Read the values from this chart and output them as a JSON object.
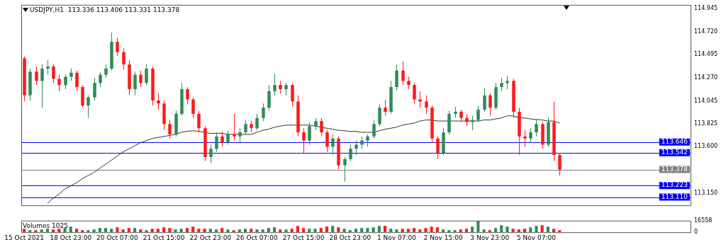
{
  "chart_data": [
    {
      "type": "candlestick",
      "title": "USDJPY,H1  113.336 113.406 113.331 113.378",
      "categories": [
        null,
        null,
        null,
        null,
        null,
        null,
        null,
        null,
        null,
        null,
        null,
        null,
        null,
        null,
        null,
        null,
        null,
        null,
        null,
        null,
        null,
        null,
        null,
        null,
        null,
        null,
        null,
        null,
        null,
        null,
        null,
        null,
        null,
        null,
        null,
        null,
        null,
        null,
        null,
        null,
        null,
        null,
        null,
        null,
        null,
        null,
        null,
        null,
        null,
        null,
        null,
        null,
        null,
        null,
        null,
        null,
        null,
        null,
        null,
        null,
        null,
        null,
        null,
        null,
        null,
        null,
        null,
        null,
        null,
        null,
        null,
        null,
        null,
        null,
        null,
        null,
        null,
        null,
        null,
        null,
        null,
        null,
        null,
        null,
        null,
        null,
        null,
        null,
        null,
        null,
        null,
        null,
        null,
        null,
        null,
        null,
        null,
        null,
        null,
        null,
        null,
        null,
        null,
        null,
        null,
        null,
        null,
        null,
        null,
        null,
        null,
        null,
        null,
        null,
        null
      ],
      "ohlc": [
        [
          114.46,
          114.48,
          114.04,
          114.1
        ],
        [
          114.1,
          114.36,
          114.05,
          114.33
        ],
        [
          114.33,
          114.38,
          114.2,
          114.24
        ],
        [
          114.24,
          114.4,
          113.98,
          114.36
        ],
        [
          114.36,
          114.44,
          114.3,
          114.38
        ],
        [
          114.38,
          114.4,
          114.22,
          114.26
        ],
        [
          114.26,
          114.3,
          114.14,
          114.2
        ],
        [
          114.2,
          114.3,
          114.16,
          114.28
        ],
        [
          114.28,
          114.36,
          114.24,
          114.32
        ],
        [
          114.32,
          114.34,
          114.14,
          114.18
        ],
        [
          114.18,
          114.2,
          113.98,
          114.0
        ],
        [
          114.0,
          114.1,
          113.88,
          114.08
        ],
        [
          114.08,
          114.27,
          114.05,
          114.22
        ],
        [
          114.22,
          114.32,
          114.18,
          114.3
        ],
        [
          114.3,
          114.4,
          114.27,
          114.36
        ],
        [
          114.36,
          114.71,
          114.34,
          114.62
        ],
        [
          114.62,
          114.66,
          114.48,
          114.52
        ],
        [
          114.52,
          114.56,
          114.35,
          114.4
        ],
        [
          114.4,
          114.44,
          114.1,
          114.16
        ],
        [
          114.16,
          114.33,
          114.1,
          114.3
        ],
        [
          114.3,
          114.34,
          114.18,
          114.22
        ],
        [
          114.22,
          114.4,
          114.2,
          114.36
        ],
        [
          114.36,
          114.38,
          114.0,
          114.05
        ],
        [
          114.05,
          114.12,
          113.96,
          114.02
        ],
        [
          114.02,
          114.05,
          113.76,
          113.82
        ],
        [
          113.82,
          113.86,
          113.68,
          113.72
        ],
        [
          113.72,
          113.95,
          113.7,
          113.92
        ],
        [
          113.92,
          114.22,
          113.9,
          114.16
        ],
        [
          114.16,
          114.18,
          114.01,
          114.06
        ],
        [
          114.06,
          114.08,
          113.88,
          113.92
        ],
        [
          113.92,
          113.95,
          113.74,
          113.78
        ],
        [
          113.78,
          113.8,
          113.46,
          113.5
        ],
        [
          113.5,
          113.62,
          113.44,
          113.58
        ],
        [
          113.58,
          113.74,
          113.55,
          113.7
        ],
        [
          113.7,
          113.75,
          113.6,
          113.64
        ],
        [
          113.64,
          113.76,
          113.62,
          113.72
        ],
        [
          113.72,
          113.92,
          113.66,
          113.7
        ],
        [
          113.7,
          113.78,
          113.64,
          113.74
        ],
        [
          113.74,
          113.86,
          113.72,
          113.82
        ],
        [
          113.82,
          113.85,
          113.74,
          113.78
        ],
        [
          113.78,
          113.92,
          113.76,
          113.88
        ],
        [
          113.88,
          114.02,
          113.85,
          113.98
        ],
        [
          113.98,
          114.2,
          113.95,
          114.14
        ],
        [
          114.14,
          114.31,
          114.1,
          114.2
        ],
        [
          114.2,
          114.24,
          114.12,
          114.16
        ],
        [
          114.16,
          114.22,
          114.1,
          114.2
        ],
        [
          114.2,
          114.22,
          113.99,
          114.04
        ],
        [
          114.04,
          114.1,
          113.7,
          113.74
        ],
        [
          113.74,
          113.78,
          113.54,
          113.66
        ],
        [
          113.66,
          113.84,
          113.62,
          113.8
        ],
        [
          113.8,
          113.88,
          113.76,
          113.85
        ],
        [
          113.85,
          113.88,
          113.7,
          113.74
        ],
        [
          113.74,
          113.76,
          113.55,
          113.6
        ],
        [
          113.6,
          113.72,
          113.52,
          113.68
        ],
        [
          113.68,
          113.7,
          113.38,
          113.42
        ],
        [
          113.42,
          113.5,
          113.26,
          113.48
        ],
        [
          113.48,
          113.62,
          113.46,
          113.58
        ],
        [
          113.58,
          113.66,
          113.52,
          113.62
        ],
        [
          113.62,
          113.7,
          113.58,
          113.66
        ],
        [
          113.66,
          113.72,
          113.6,
          113.7
        ],
        [
          113.7,
          113.86,
          113.68,
          113.82
        ],
        [
          113.82,
          114.01,
          113.8,
          113.98
        ],
        [
          113.98,
          114.06,
          113.9,
          113.94
        ],
        [
          113.94,
          114.24,
          113.92,
          114.18
        ],
        [
          114.18,
          114.4,
          114.15,
          114.34
        ],
        [
          114.34,
          114.43,
          114.2,
          114.24
        ],
        [
          114.24,
          114.28,
          114.16,
          114.2
        ],
        [
          114.2,
          114.22,
          114.02,
          114.06
        ],
        [
          114.06,
          114.14,
          113.98,
          114.04
        ],
        [
          114.04,
          114.1,
          113.92,
          113.98
        ],
        [
          113.98,
          114.0,
          113.64,
          113.68
        ],
        [
          113.68,
          113.7,
          113.48,
          113.54
        ],
        [
          113.54,
          113.78,
          113.52,
          113.74
        ],
        [
          113.74,
          113.95,
          113.72,
          113.92
        ],
        [
          113.92,
          113.99,
          113.88,
          113.94
        ],
        [
          113.94,
          113.96,
          113.84,
          113.88
        ],
        [
          113.88,
          113.92,
          113.8,
          113.84
        ],
        [
          113.84,
          113.9,
          113.76,
          113.86
        ],
        [
          113.86,
          114.0,
          113.84,
          113.96
        ],
        [
          113.96,
          114.17,
          113.94,
          114.1
        ],
        [
          114.1,
          114.12,
          113.9,
          113.98
        ],
        [
          113.98,
          114.22,
          113.96,
          114.18
        ],
        [
          114.18,
          114.27,
          114.14,
          114.22
        ],
        [
          114.22,
          114.29,
          114.16,
          114.24
        ],
        [
          114.24,
          114.26,
          113.88,
          113.94
        ],
        [
          113.94,
          113.98,
          113.52,
          113.7
        ],
        [
          113.7,
          113.76,
          113.6,
          113.68
        ],
        [
          113.68,
          113.78,
          113.64,
          113.74
        ],
        [
          113.74,
          113.86,
          113.7,
          113.82
        ],
        [
          113.82,
          113.84,
          113.58,
          113.62
        ],
        [
          113.62,
          113.88,
          113.6,
          113.84
        ],
        [
          113.84,
          114.04,
          113.46,
          113.52
        ],
        [
          113.52,
          113.54,
          113.32,
          113.378
        ],
        null,
        null,
        null,
        null,
        null,
        null,
        null,
        null,
        null,
        null,
        null,
        null,
        null,
        null,
        null,
        null,
        null,
        null,
        null,
        null,
        null,
        null
      ],
      "colors": [
        "#ff1a1a",
        "#2e8b57",
        "#ff1a1a",
        "#2e8b57",
        "#2e8b57",
        "#ff1a1a",
        "#ff1a1a",
        "#2e8b57",
        "#2e8b57",
        "#ff1a1a",
        "#ff1a1a",
        "#2e8b57",
        "#2e8b57",
        "#2e8b57",
        "#2e8b57",
        "#2e8b57",
        "#ff1a1a",
        "#ff1a1a",
        "#ff1a1a",
        "#2e8b57",
        "#ff1a1a",
        "#2e8b57",
        "#ff1a1a",
        "#ff1a1a",
        "#ff1a1a",
        "#ff1a1a",
        "#2e8b57",
        "#2e8b57",
        "#ff1a1a",
        "#ff1a1a",
        "#ff1a1a",
        "#ff1a1a",
        "#2e8b57",
        "#2e8b57",
        "#ff1a1a",
        "#2e8b57",
        "#ff1a1a",
        "#2e8b57",
        "#2e8b57",
        "#ff1a1a",
        "#2e8b57",
        "#2e8b57",
        "#2e8b57",
        "#2e8b57",
        "#ff1a1a",
        "#2e8b57",
        "#ff1a1a",
        "#ff1a1a",
        "#ff1a1a",
        "#2e8b57",
        "#2e8b57",
        "#ff1a1a",
        "#ff1a1a",
        "#2e8b57",
        "#ff1a1a",
        "#2e8b57",
        "#2e8b57",
        "#2e8b57",
        "#2e8b57",
        "#2e8b57",
        "#2e8b57",
        "#2e8b57",
        "#ff1a1a",
        "#2e8b57",
        "#2e8b57",
        "#ff1a1a",
        "#ff1a1a",
        "#ff1a1a",
        "#ff1a1a",
        "#ff1a1a",
        "#ff1a1a",
        "#ff1a1a",
        "#2e8b57",
        "#2e8b57",
        "#2e8b57",
        "#ff1a1a",
        "#ff1a1a",
        "#2e8b57",
        "#2e8b57",
        "#2e8b57",
        "#ff1a1a",
        "#2e8b57",
        "#2e8b57",
        "#2e8b57",
        "#ff1a1a",
        "#ff1a1a",
        "#ff1a1a",
        "#2e8b57",
        "#2e8b57",
        "#ff1a1a",
        "#2e8b57",
        "#ff1a1a",
        "#ff1a1a",
        null,
        null,
        null,
        null,
        null,
        null,
        null,
        null,
        null,
        null,
        null,
        null,
        null,
        null,
        null,
        null,
        null,
        null,
        null,
        null,
        null,
        null
      ],
      "series": [
        {
          "type": "line",
          "color": "#333333",
          "values": [
            null,
            null,
            null,
            null,
            113.05,
            113.1,
            113.14,
            113.19,
            113.22,
            113.25,
            113.29,
            113.32,
            113.35,
            113.39,
            113.43,
            113.47,
            113.51,
            113.55,
            113.58,
            113.61,
            113.64,
            113.66,
            113.68,
            113.69,
            113.7,
            113.71,
            113.72,
            113.74,
            113.75,
            113.755,
            113.75,
            113.74,
            113.73,
            113.73,
            113.73,
            113.72,
            113.72,
            113.72,
            113.72,
            113.72,
            113.74,
            113.76,
            113.77,
            113.79,
            113.8,
            113.81,
            113.81,
            113.81,
            113.81,
            113.81,
            113.8,
            113.79,
            113.78,
            113.77,
            113.76,
            113.755,
            113.75,
            113.75,
            113.74,
            113.74,
            113.74,
            113.755,
            113.77,
            113.78,
            113.79,
            113.81,
            113.82,
            113.83,
            113.85,
            113.86,
            113.86,
            113.85,
            113.85,
            113.85,
            113.85,
            113.85,
            113.85,
            113.85,
            113.85,
            113.86,
            113.86,
            113.87,
            113.88,
            113.9,
            113.9,
            113.88,
            113.88,
            113.87,
            113.865,
            113.86,
            113.85,
            113.85,
            113.83,
            null,
            null,
            null,
            null,
            null,
            null,
            null,
            null,
            null,
            null,
            null,
            null,
            null,
            null,
            null,
            null,
            null,
            null,
            null,
            null,
            null,
            null
          ]
        }
      ],
      "ylim": [
        113.03,
        114.98
      ],
      "yticks": [
        114.945,
        {
          "value": 114.72,
          "label": "114.720"
        },
        114.495,
        {
          "value": 114.27,
          "label": "114.270"
        },
        114.045,
        113.825,
        {
          "value": 113.6,
          "label": "113.600"
        },
        {
          "value": 113.15,
          "label": "113.150"
        }
      ],
      "ref_lines": [
        {
          "axis": "y",
          "value": 113.646,
          "label": "113.646",
          "color": "#0000ff"
        },
        {
          "axis": "y",
          "value": 113.542,
          "label": "113.542",
          "color": "#0000ff"
        },
        {
          "axis": "y",
          "value": 113.378,
          "label": "113.378",
          "color": "#808080"
        },
        {
          "axis": "y",
          "value": 113.223,
          "label": "113.223",
          "color": "#0000ff"
        },
        {
          "axis": "y",
          "value": 113.11,
          "label": "113.110",
          "color": "#0000ff"
        }
      ]
    },
    {
      "type": "bar",
      "title": "Volumes 1025",
      "categories": [
        "15 Oct 2021",
        null,
        null,
        null,
        null,
        null,
        null,
        null,
        "18 Oct 23:00",
        null,
        null,
        null,
        null,
        null,
        null,
        null,
        "20 Oct 07:00",
        null,
        null,
        null,
        null,
        null,
        null,
        null,
        "21 Oct 15:00",
        null,
        null,
        null,
        null,
        null,
        null,
        null,
        "22 Oct 23:00",
        null,
        null,
        null,
        null,
        null,
        null,
        null,
        "26 Oct 07:00",
        null,
        null,
        null,
        null,
        null,
        null,
        null,
        "27 Oct 15:00",
        null,
        null,
        null,
        null,
        null,
        null,
        null,
        "28 Oct 23:00",
        null,
        null,
        null,
        null,
        null,
        null,
        null,
        "1 Nov 07:00",
        null,
        null,
        null,
        null,
        null,
        null,
        null,
        "2 Nov 15:00",
        null,
        null,
        null,
        null,
        null,
        null,
        null,
        "3 Nov 23:00",
        null,
        null,
        null,
        null,
        null,
        null,
        null,
        "5 Nov 07:00",
        null,
        null,
        null,
        null,
        null,
        null,
        null,
        null,
        null,
        null,
        null,
        null,
        null,
        null,
        null,
        null,
        null,
        null,
        null,
        null,
        null,
        null,
        null,
        null,
        null,
        null
      ],
      "values": [
        5000,
        3000,
        3000,
        4000,
        5000,
        4000,
        5000,
        6000,
        8000,
        5000,
        3000,
        3000,
        4000,
        6000,
        6000,
        5000,
        7000,
        4000,
        6000,
        6000,
        4000,
        3000,
        5000,
        5000,
        7000,
        6000,
        4000,
        5000,
        6000,
        8000,
        5000,
        5000,
        5000,
        4000,
        6000,
        4000,
        3000,
        4000,
        5000,
        5000,
        4000,
        4000,
        6000,
        7000,
        4000,
        4000,
        5000,
        9000,
        6000,
        5000,
        5000,
        6000,
        8000,
        9000,
        7000,
        5000,
        3000,
        5000,
        6000,
        6000,
        7000,
        9000,
        9000,
        5000,
        4000,
        5000,
        5000,
        6000,
        4000,
        6000,
        8000,
        7000,
        4000,
        3000,
        3000,
        4000,
        5000,
        8000,
        16000,
        4000,
        3000,
        6000,
        10000,
        8000,
        5000,
        4000,
        5000,
        7000,
        9000,
        10000,
        8000,
        5000,
        3000,
        null,
        null,
        null,
        null,
        null,
        null,
        null,
        null,
        null,
        null,
        null,
        null,
        null,
        null,
        null,
        null,
        null,
        null,
        null,
        null,
        null,
        null
      ],
      "colors": [
        "#ff1a1a",
        "#2e8b57",
        "#ff1a1a",
        "#2e8b57",
        "#2e8b57",
        "#ff1a1a",
        "#ff1a1a",
        "#2e8b57",
        "#2e8b57",
        "#ff1a1a",
        "#ff1a1a",
        "#2e8b57",
        "#2e8b57",
        "#2e8b57",
        "#2e8b57",
        "#2e8b57",
        "#ff1a1a",
        "#ff1a1a",
        "#ff1a1a",
        "#2e8b57",
        "#ff1a1a",
        "#2e8b57",
        "#ff1a1a",
        "#ff1a1a",
        "#ff1a1a",
        "#ff1a1a",
        "#2e8b57",
        "#2e8b57",
        "#ff1a1a",
        "#ff1a1a",
        "#ff1a1a",
        "#ff1a1a",
        "#2e8b57",
        "#2e8b57",
        "#ff1a1a",
        "#2e8b57",
        "#ff1a1a",
        "#2e8b57",
        "#2e8b57",
        "#ff1a1a",
        "#2e8b57",
        "#2e8b57",
        "#2e8b57",
        "#2e8b57",
        "#ff1a1a",
        "#2e8b57",
        "#ff1a1a",
        "#ff1a1a",
        "#ff1a1a",
        "#2e8b57",
        "#2e8b57",
        "#ff1a1a",
        "#ff1a1a",
        "#2e8b57",
        "#ff1a1a",
        "#2e8b57",
        "#2e8b57",
        "#2e8b57",
        "#2e8b57",
        "#2e8b57",
        "#2e8b57",
        "#2e8b57",
        "#ff1a1a",
        "#2e8b57",
        "#2e8b57",
        "#ff1a1a",
        "#ff1a1a",
        "#ff1a1a",
        "#ff1a1a",
        "#ff1a1a",
        "#ff1a1a",
        "#ff1a1a",
        "#2e8b57",
        "#2e8b57",
        "#2e8b57",
        "#ff1a1a",
        "#ff1a1a",
        "#2e8b57",
        "#2e8b57",
        "#2e8b57",
        "#ff1a1a",
        "#2e8b57",
        "#2e8b57",
        "#2e8b57",
        "#ff1a1a",
        "#ff1a1a",
        "#ff1a1a",
        "#2e8b57",
        "#2e8b57",
        "#ff1a1a",
        "#2e8b57",
        "#ff1a1a",
        "#ff1a1a",
        null,
        null,
        null,
        null,
        null,
        null,
        null,
        null,
        null,
        null,
        null,
        null,
        null,
        null,
        null,
        null,
        null,
        null,
        null,
        null,
        null,
        null
      ],
      "ylim": [
        0,
        16558
      ],
      "yticks": [
        16558,
        0
      ]
    }
  ]
}
